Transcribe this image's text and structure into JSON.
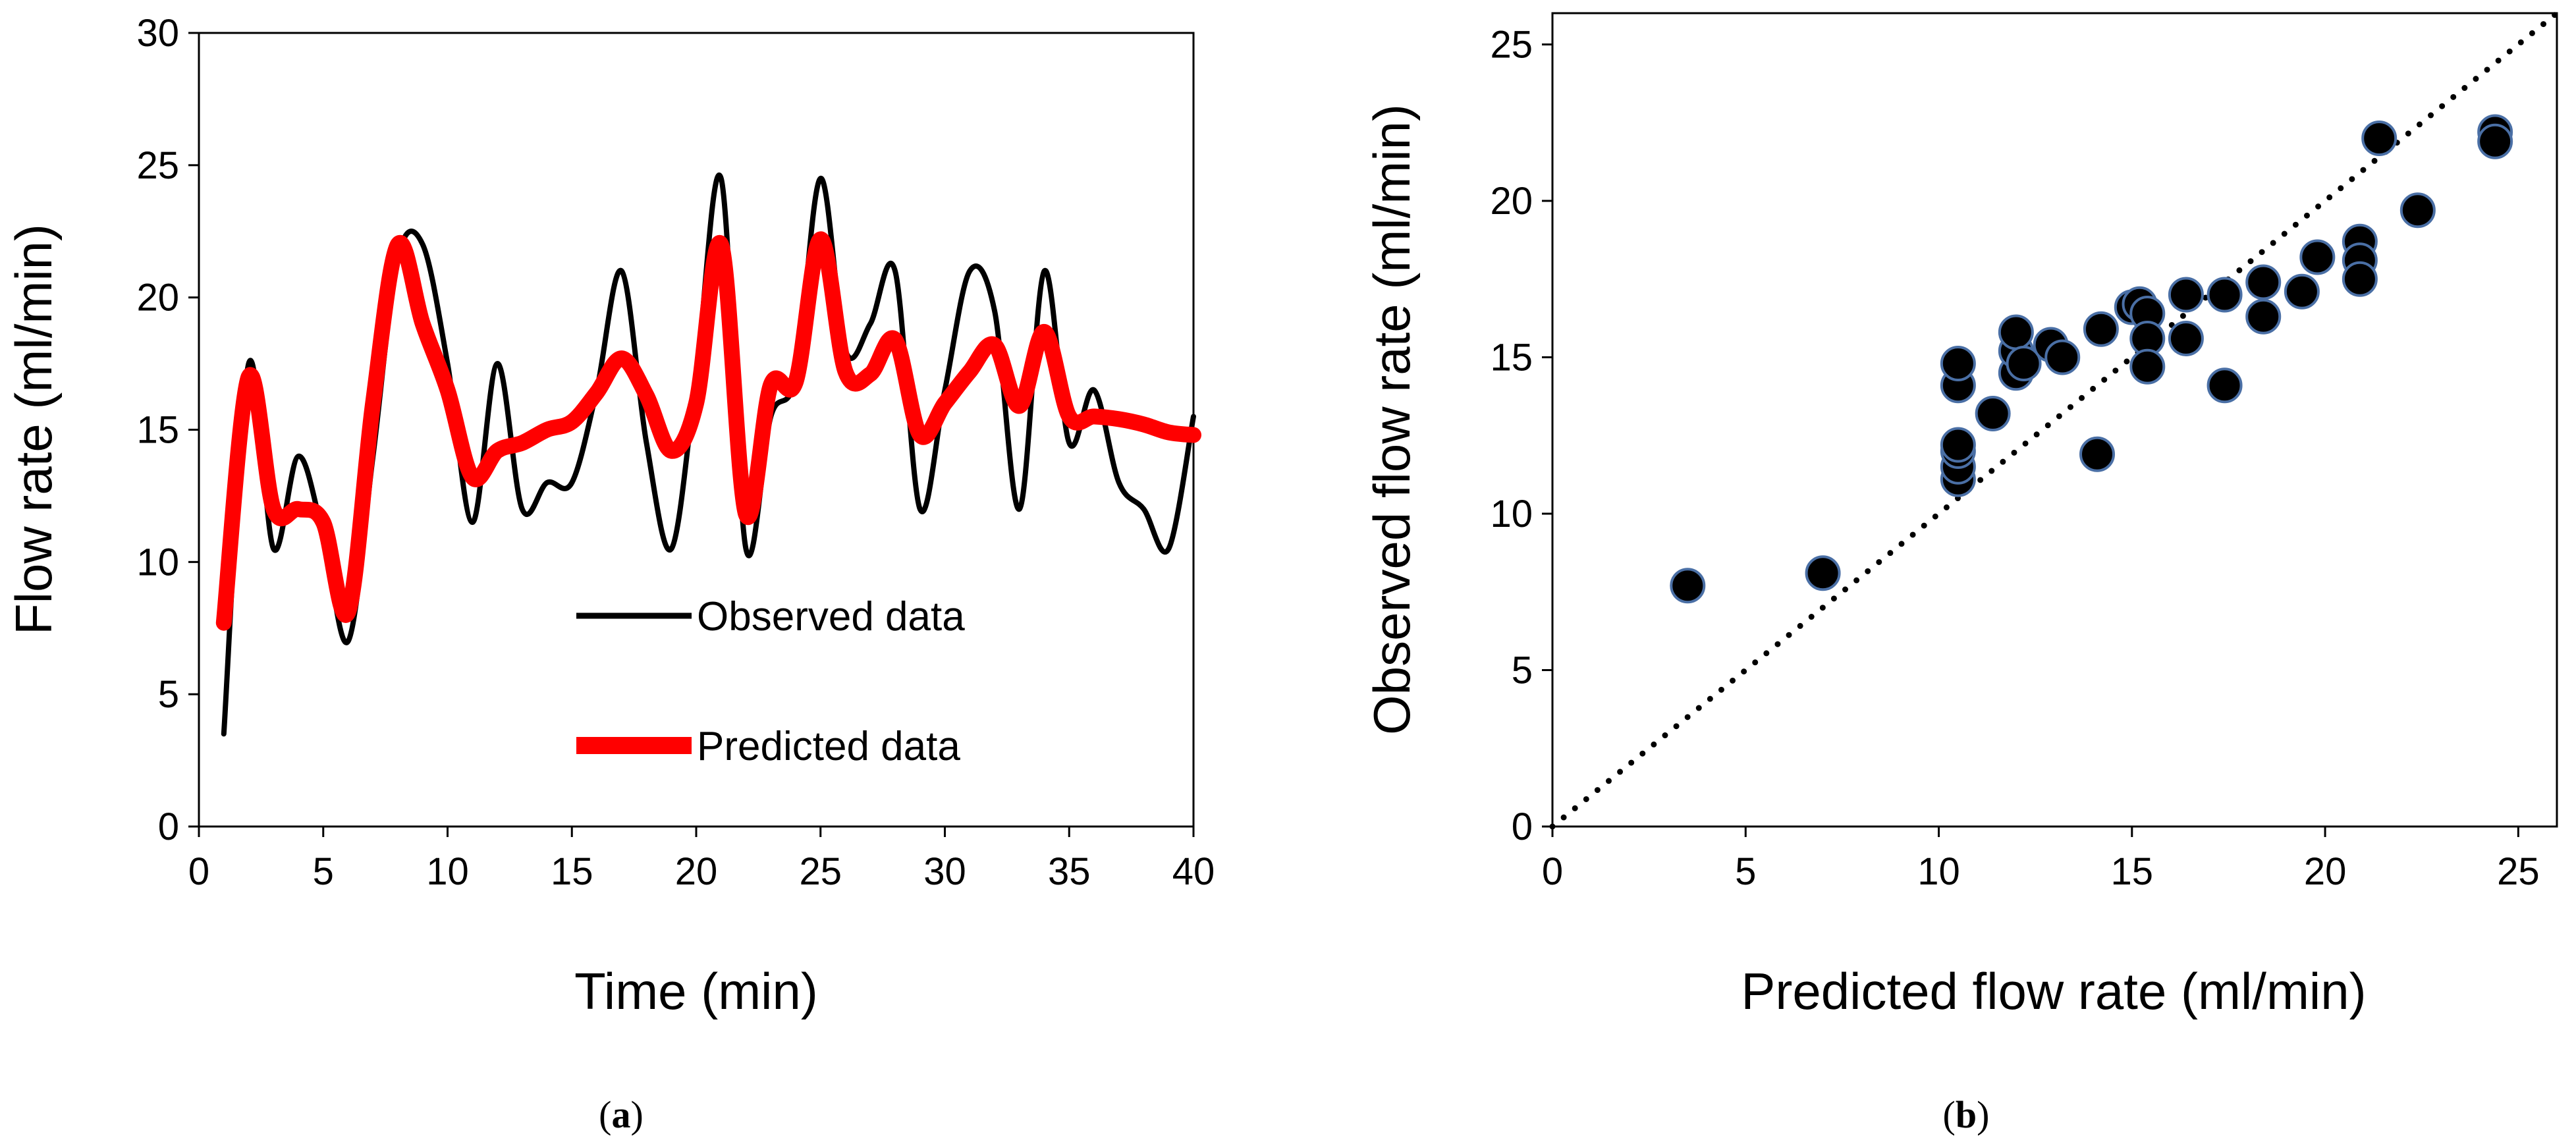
{
  "chart_data": [
    {
      "type": "line",
      "panel": "a",
      "caption_open": "(",
      "caption_letter": "a",
      "caption_close": ")",
      "xlabel": "Time (min)",
      "ylabel": "Flow rate (ml/min)",
      "xlim": [
        0,
        40
      ],
      "ylim": [
        0,
        30
      ],
      "xticks": [
        0,
        5,
        10,
        15,
        20,
        25,
        30,
        35,
        40
      ],
      "yticks": [
        0,
        5,
        10,
        15,
        20,
        25,
        30
      ],
      "grid": false,
      "legend_position": "center-right",
      "series": [
        {
          "name": "Observed data",
          "color": "#000000",
          "x": [
            1,
            2,
            3,
            4,
            5,
            6,
            7,
            8,
            9,
            10,
            11,
            12,
            13,
            14,
            15,
            16,
            17,
            18,
            19,
            20,
            21,
            22,
            23,
            24,
            25,
            26,
            27,
            28,
            29,
            30,
            31,
            32,
            33,
            34,
            35,
            36,
            37,
            38,
            39,
            40
          ],
          "values": [
            3.5,
            17.5,
            10.5,
            14,
            11,
            7,
            14,
            21.5,
            22,
            17.5,
            11.5,
            17.5,
            12,
            13,
            13,
            16.5,
            21,
            14.5,
            10.5,
            17,
            24.5,
            10.5,
            15.5,
            17,
            24.5,
            18,
            19,
            21,
            12,
            16.5,
            21,
            19.5,
            12,
            21,
            14.5,
            16.5,
            13,
            12,
            10.5,
            15.5
          ]
        },
        {
          "name": "Predicted data",
          "color": "#ff0000",
          "x": [
            1,
            2,
            3,
            4,
            5,
            6,
            7,
            8,
            9,
            10,
            11,
            12,
            13,
            14,
            15,
            16,
            17,
            18,
            19,
            20,
            21,
            22,
            23,
            24,
            25,
            26,
            27,
            28,
            29,
            30,
            31,
            32,
            33,
            34,
            35,
            36,
            37,
            38,
            39,
            40
          ],
          "values": [
            7.7,
            17,
            12,
            12,
            11.5,
            8.1,
            16,
            22,
            19,
            16.5,
            13.2,
            14.2,
            14.5,
            15,
            15.3,
            16.4,
            17.7,
            16.3,
            14.2,
            16,
            22,
            11.8,
            16.7,
            16.8,
            22.2,
            17.2,
            17.1,
            18.4,
            14.8,
            16,
            17.2,
            18.2,
            15.9,
            18.7,
            15.5,
            15.5,
            15.4,
            15.2,
            14.9,
            14.8
          ]
        }
      ]
    },
    {
      "type": "scatter",
      "panel": "b",
      "caption_open": "(",
      "caption_letter": "b",
      "caption_close": ")",
      "xlabel": "Predicted flow rate (ml/min)",
      "ylabel": "Observed flow rate (ml/min)",
      "xlim": [
        0,
        26
      ],
      "ylim": [
        0,
        26
      ],
      "xticks": [
        0,
        5,
        10,
        15,
        20,
        25
      ],
      "yticks": [
        0,
        5,
        10,
        15,
        20,
        25
      ],
      "grid": false,
      "reference_line": "y = x (dotted)",
      "marker_color": "#000000",
      "marker_edge": "#4a6fa5",
      "points": [
        [
          3.5,
          7.7
        ],
        [
          7.0,
          8.1
        ],
        [
          10.5,
          11.1
        ],
        [
          10.5,
          11.5
        ],
        [
          10.5,
          12.0
        ],
        [
          10.5,
          12.2
        ],
        [
          10.5,
          14.1
        ],
        [
          10.5,
          14.8
        ],
        [
          11.4,
          13.2
        ],
        [
          12.0,
          14.5
        ],
        [
          12.0,
          15.2
        ],
        [
          12.0,
          15.8
        ],
        [
          12.2,
          14.8
        ],
        [
          12.9,
          15.4
        ],
        [
          13.2,
          15.0
        ],
        [
          14.1,
          11.9
        ],
        [
          14.2,
          15.9
        ],
        [
          15.0,
          16.6
        ],
        [
          15.2,
          16.7
        ],
        [
          15.4,
          16.4
        ],
        [
          15.4,
          15.6
        ],
        [
          15.4,
          14.7
        ],
        [
          16.4,
          17.0
        ],
        [
          16.4,
          15.6
        ],
        [
          17.4,
          17.0
        ],
        [
          17.4,
          14.1
        ],
        [
          18.4,
          17.4
        ],
        [
          18.4,
          16.3
        ],
        [
          19.4,
          17.1
        ],
        [
          19.8,
          18.2
        ],
        [
          20.9,
          18.7
        ],
        [
          20.9,
          18.1
        ],
        [
          20.9,
          17.5
        ],
        [
          21.4,
          22.0
        ],
        [
          22.4,
          19.7
        ],
        [
          24.4,
          22.2
        ],
        [
          24.4,
          21.9
        ]
      ]
    }
  ]
}
